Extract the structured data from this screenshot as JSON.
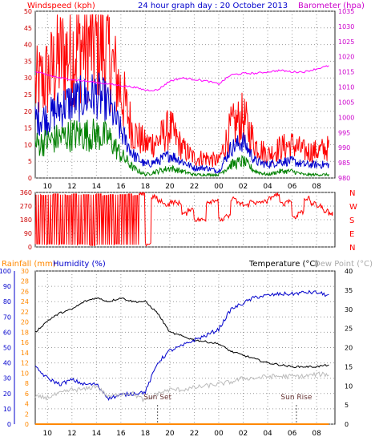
{
  "chart_data": [
    {
      "type": "line",
      "title": "24 hour graph day : 20 October 2013",
      "left_axis_label": "Windspeed (kph)",
      "right_axis_label": "Barometer (hpa)",
      "x_ticks": [
        "10",
        "12",
        "14",
        "16",
        "18",
        "20",
        "22",
        "00",
        "02",
        "04",
        "06",
        "08"
      ],
      "left_ticks": [
        "0",
        "5",
        "10",
        "15",
        "20",
        "25",
        "30",
        "35",
        "40",
        "45",
        "50"
      ],
      "right_ticks": [
        "980",
        "985",
        "990",
        "995",
        "1000",
        "1005",
        "1010",
        "1015",
        "1020",
        "1025",
        "1030",
        "1035"
      ],
      "ylim_left": [
        0,
        50
      ],
      "ylim_right": [
        980,
        1035
      ],
      "hours": [
        9,
        10,
        11,
        12,
        13,
        14,
        15,
        16,
        17,
        18,
        19,
        20,
        21,
        22,
        23,
        24,
        25,
        26,
        27,
        28,
        29,
        30,
        31,
        32,
        33
      ],
      "series": [
        {
          "name": "gust",
          "color": "#ff0000",
          "axis": "left",
          "values": [
            27,
            30,
            36,
            38,
            40,
            40,
            37,
            26,
            14,
            10,
            11,
            15,
            9,
            6,
            6,
            5,
            15,
            18,
            10,
            7,
            9,
            10,
            8,
            8,
            9
          ]
        },
        {
          "name": "average",
          "color": "#0000cc",
          "axis": "left",
          "values": [
            18,
            18,
            21,
            23,
            24,
            25,
            22,
            14,
            7,
            4,
            5,
            7,
            5,
            3,
            3,
            2,
            9,
            11,
            5,
            4,
            5,
            5,
            4,
            4,
            4
          ]
        },
        {
          "name": "direction-avg",
          "color": "#008000",
          "axis": "left",
          "values": [
            10,
            11,
            12,
            13,
            13,
            13,
            12,
            7,
            3,
            1,
            2,
            3,
            2,
            1,
            1,
            1,
            4,
            5,
            2,
            1,
            2,
            2,
            1,
            1,
            1
          ]
        },
        {
          "name": "barometer",
          "color": "#ff00ff",
          "axis": "right",
          "values": [
            1015,
            1014,
            1013,
            1012.5,
            1012,
            1011.5,
            1011,
            1010.5,
            1010,
            1009,
            1009,
            1012,
            1013,
            1012.5,
            1012,
            1011,
            1014,
            1014.5,
            1014.5,
            1015,
            1015.5,
            1015,
            1015,
            1016,
            1017
          ]
        }
      ]
    },
    {
      "type": "scatter",
      "series_name": "wind-direction",
      "color": "#ff0000",
      "left_ticks": [
        "0",
        "90",
        "180",
        "270",
        "360"
      ],
      "right_ticks": [
        "N",
        "W",
        "S",
        "E",
        "N"
      ],
      "ylim": [
        0,
        360
      ],
      "hours": [
        9,
        9.5,
        10,
        10.5,
        11,
        11.5,
        12,
        12.5,
        13,
        13.5,
        14,
        14.5,
        15,
        15.5,
        16,
        16.5,
        17,
        17.5,
        18,
        18.5,
        19,
        19.5,
        20,
        20.5,
        21,
        21.5,
        22,
        22.5,
        23,
        23.5,
        24,
        24.5,
        25,
        25.5,
        26,
        26.5,
        27,
        27.5,
        28,
        28.5,
        29,
        29.5,
        30,
        30.5,
        31,
        31.5,
        32,
        32.5,
        33
      ],
      "values": [
        20,
        340,
        20,
        350,
        20,
        340,
        350,
        20,
        345,
        10,
        350,
        340,
        345,
        20,
        345,
        350,
        340,
        345,
        20,
        330,
        300,
        280,
        295,
        290,
        220,
        250,
        180,
        180,
        300,
        310,
        180,
        200,
        320,
        285,
        275,
        300,
        290,
        300,
        320,
        345,
        285,
        305,
        200,
        230,
        320,
        285,
        270,
        240,
        220
      ]
    },
    {
      "type": "line",
      "left_label_1": "Rainfall (mm)",
      "left_label_2": "Humidity (%)",
      "right_label_1": "Temperature (°C)",
      "right_label_2": "Dew Point (°C)",
      "x_ticks": [
        "10",
        "12",
        "14",
        "16",
        "18",
        "20",
        "22",
        "00",
        "02",
        "04",
        "06",
        "08"
      ],
      "humidity_ticks": [
        "0",
        "10",
        "20",
        "30",
        "40",
        "50",
        "60",
        "70",
        "80",
        "90",
        "100"
      ],
      "rain_ticks": [
        "0",
        "2",
        "4",
        "6",
        "8",
        "10",
        "12",
        "14",
        "16",
        "18",
        "20",
        "22",
        "24",
        "26",
        "28",
        "30"
      ],
      "temp_ticks": [
        "0",
        "5",
        "10",
        "15",
        "20",
        "25",
        "30",
        "35",
        "40"
      ],
      "ylim_humidity": [
        0,
        100
      ],
      "ylim_temp": [
        0,
        40
      ],
      "hours": [
        9,
        10,
        11,
        12,
        13,
        14,
        15,
        16,
        17,
        18,
        19,
        20,
        21,
        22,
        23,
        24,
        25,
        26,
        27,
        28,
        29,
        30,
        31,
        32,
        33
      ],
      "series": [
        {
          "name": "temperature",
          "color": "#000000",
          "values": [
            24,
            27,
            29,
            30,
            32,
            33,
            32,
            33,
            32,
            32,
            29,
            24,
            23,
            22,
            21.5,
            21,
            19,
            18,
            17,
            16,
            15.5,
            15,
            15,
            15,
            15.5
          ]
        },
        {
          "name": "humidity",
          "color": "#0000cc",
          "values": [
            37,
            30,
            26,
            29,
            26,
            26,
            17,
            19,
            20,
            21,
            40,
            48,
            51,
            55,
            58,
            62,
            75,
            79,
            83,
            84,
            85,
            85,
            86,
            86,
            84
          ]
        },
        {
          "name": "dew-point",
          "color": "#bbbbbb",
          "values": [
            7,
            7,
            8,
            9,
            9,
            10,
            7,
            8,
            8,
            6,
            8,
            9,
            9,
            9.5,
            10,
            10.5,
            11,
            12,
            12,
            12.5,
            12.5,
            12.5,
            12.5,
            13,
            13
          ]
        },
        {
          "name": "rainfall",
          "color": "#ff8800",
          "values": [
            0,
            0,
            0,
            0,
            0,
            0,
            0,
            0,
            0,
            0,
            0,
            0,
            0,
            0,
            0,
            0,
            0,
            0,
            0,
            0,
            0,
            0,
            0,
            0,
            0
          ]
        }
      ],
      "annotations": [
        {
          "label": "Sun Set",
          "hour": 19.0,
          "marker": "Sun Set"
        },
        {
          "label": "Sun Rise",
          "hour": 30.35,
          "marker": "Sun Rise"
        }
      ]
    }
  ],
  "colors": {
    "windspeed_label": "#ff0000",
    "barometer_label": "#cc00cc",
    "title": "#0000cc",
    "axis_left_top": "#cc0000",
    "axis_right_top": "#cc00cc",
    "direction_ticks": "#cc0000",
    "compass": "#ff0000",
    "rainfall_label": "#ff8800",
    "humidity_label": "#0000cc",
    "temperature_label": "#000000",
    "dewpoint_label": "#aaaaaa",
    "humidity_ticks": "#0000cc",
    "rain_ticks": "#ff8800",
    "temp_ticks": "#000000"
  }
}
